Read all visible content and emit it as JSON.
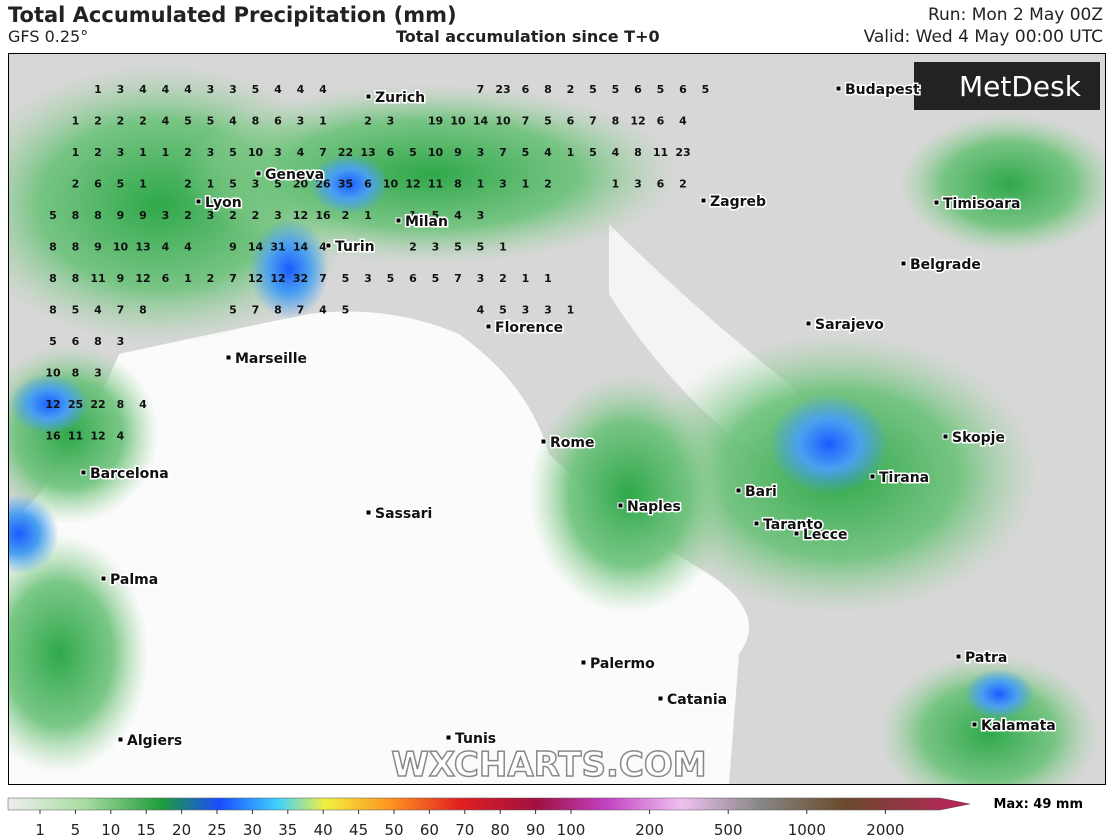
{
  "header": {
    "title": "Total Accumulated Precipitation (mm)",
    "model": "GFS 0.25°",
    "subtitle": "Total accumulation since T+0",
    "run": "Run: Mon 2 May 00Z",
    "valid": "Valid: Wed 4 May 00:00 UTC"
  },
  "logo": "MetDesk",
  "watermark": "WXCHARTS.COM",
  "max_label": "Max: 49 mm",
  "colorbar": {
    "ticks": [
      1,
      5,
      10,
      15,
      20,
      25,
      30,
      35,
      40,
      45,
      50,
      60,
      70,
      80,
      90,
      100,
      200,
      500,
      1000,
      2000
    ]
  },
  "cities": [
    "Zurich",
    "Budapest",
    "Geneva",
    "Lyon",
    "Milan",
    "Zagreb",
    "Timisoara",
    "Turin",
    "Belgrade",
    "Florence",
    "Sarajevo",
    "Marseille",
    "Rome",
    "Skopje",
    "Barcelona",
    "Tirana",
    "Bari",
    "Naples",
    "Sassari",
    "Taranto",
    "Lecce",
    "Palma",
    "Palermo",
    "Patra",
    "Catania",
    "Kalamata",
    "Tunis",
    "Algiers"
  ],
  "grid_rows": [
    [
      null,
      null,
      1,
      3,
      4,
      4,
      4,
      3,
      3,
      5,
      4,
      4,
      4,
      null,
      null,
      null,
      null,
      null,
      null,
      7,
      23,
      6,
      8,
      2,
      5,
      5,
      6,
      5,
      6,
      5
    ],
    [
      null,
      1,
      2,
      2,
      2,
      4,
      5,
      5,
      4,
      8,
      6,
      3,
      1,
      null,
      2,
      3,
      null,
      19,
      10,
      14,
      10,
      7,
      5,
      6,
      7,
      8,
      12,
      6,
      4
    ],
    [
      null,
      1,
      2,
      3,
      1,
      1,
      2,
      3,
      5,
      10,
      3,
      4,
      7,
      22,
      13,
      6,
      5,
      10,
      9,
      3,
      7,
      5,
      4,
      1,
      5,
      4,
      8,
      11,
      23
    ],
    [
      null,
      2,
      6,
      5,
      1,
      null,
      2,
      1,
      5,
      3,
      5,
      20,
      26,
      35,
      6,
      10,
      12,
      11,
      8,
      1,
      3,
      1,
      2,
      null,
      null,
      1,
      3,
      6,
      2
    ],
    [
      5,
      8,
      8,
      9,
      9,
      3,
      2,
      3,
      2,
      2,
      3,
      12,
      16,
      2,
      1,
      null,
      1,
      5,
      4,
      3,
      null,
      null,
      null,
      null,
      null,
      null,
      null,
      null,
      null
    ],
    [
      8,
      8,
      9,
      10,
      13,
      4,
      4,
      null,
      9,
      14,
      31,
      14,
      4,
      null,
      1,
      null,
      2,
      3,
      5,
      5,
      1
    ],
    [
      8,
      8,
      11,
      9,
      12,
      6,
      1,
      2,
      7,
      12,
      12,
      32,
      7,
      5,
      3,
      5,
      6,
      5,
      7,
      3,
      2,
      1,
      1
    ],
    [
      8,
      5,
      4,
      7,
      8,
      null,
      null,
      null,
      5,
      7,
      8,
      7,
      4,
      5,
      null,
      null,
      null,
      null,
      null,
      4,
      5,
      3,
      3,
      1
    ],
    [
      5,
      6,
      8,
      3
    ],
    [
      10,
      8,
      3
    ],
    [
      12,
      25,
      22,
      8,
      4
    ],
    [
      16,
      11,
      12,
      4
    ]
  ]
}
